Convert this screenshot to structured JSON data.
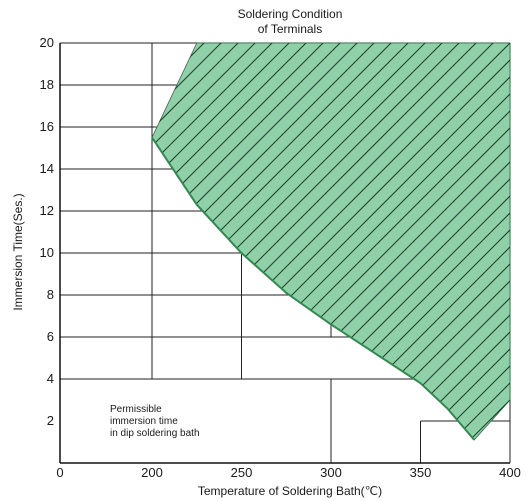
{
  "chart_data": {
    "type": "area",
    "title_lines": [
      "Soldering Condition",
      "of Terminals"
    ],
    "xlabel": "Temperature of Soldering Bath(℃)",
    "ylabel": "Immersion Time(Ses.)",
    "xlim": [
      0,
      400
    ],
    "ylim": [
      0,
      20
    ],
    "x_ticks": [
      "0",
      "200",
      "250",
      "300",
      "350",
      "400"
    ],
    "y_ticks": [
      "2",
      "4",
      "6",
      "8",
      "10",
      "12",
      "14",
      "16",
      "18",
      "20"
    ],
    "grid": true,
    "series": [
      {
        "x": [
          200,
          225,
          250,
          275,
          300,
          325,
          350,
          365,
          380
        ],
        "y": [
          15.5,
          12.3,
          10.0,
          8.1,
          6.6,
          5.2,
          3.8,
          2.6,
          1.1
        ]
      }
    ],
    "fill_color": "#8fd0a8",
    "line_color": "#2e8b4e",
    "annotation_lines": [
      "Permissible",
      "immersion time",
      "in dip soldering bath"
    ]
  }
}
